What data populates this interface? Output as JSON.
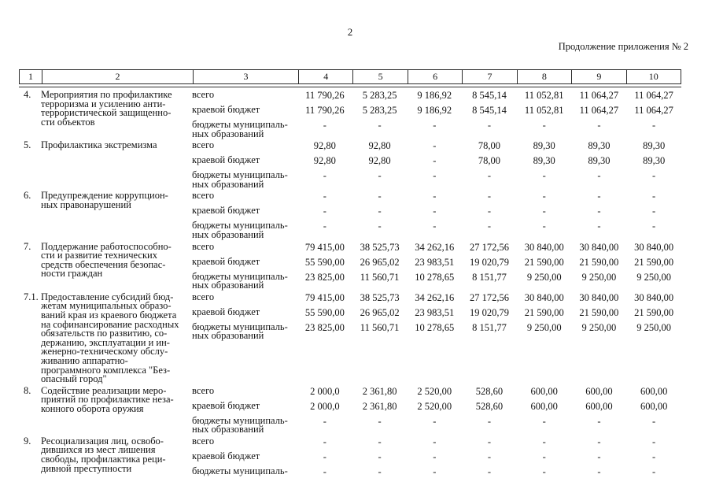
{
  "page": {
    "number": "2",
    "continuation": "Продолжение приложения № 2"
  },
  "table": {
    "header": [
      "1",
      "2",
      "3",
      "4",
      "5",
      "6",
      "7",
      "8",
      "9",
      "10"
    ],
    "rows": [
      {
        "num": "4.",
        "name": "Мероприятия по профилактике\nтерроризма и усилению анти-\nтеррористической защищенно-\nсти объектов",
        "lines": [
          {
            "label": "всего",
            "values": [
              "11 790,26",
              "5 283,25",
              "9 186,92",
              "8 545,14",
              "11 052,81",
              "11 064,27",
              "11 064,27"
            ]
          },
          {
            "label": "краевой бюджет",
            "values": [
              "11 790,26",
              "5 283,25",
              "9 186,92",
              "8 545,14",
              "11 052,81",
              "11 064,27",
              "11 064,27"
            ]
          },
          {
            "label": "бюджеты муниципаль-\nных образований",
            "values": [
              "-",
              "-",
              "-",
              "-",
              "-",
              "-",
              "-"
            ]
          }
        ]
      },
      {
        "num": "5.",
        "name": "Профилактика экстремизма",
        "lines": [
          {
            "label": "всего",
            "values": [
              "92,80",
              "92,80",
              "-",
              "78,00",
              "89,30",
              "89,30",
              "89,30"
            ]
          },
          {
            "label": "краевой бюджет",
            "values": [
              "92,80",
              "92,80",
              "-",
              "78,00",
              "89,30",
              "89,30",
              "89,30"
            ]
          },
          {
            "label": "бюджеты муниципаль-\nных образований",
            "values": [
              "-",
              "-",
              "-",
              "-",
              "-",
              "-",
              "-"
            ]
          }
        ]
      },
      {
        "num": "6.",
        "name": "Предупреждение коррупцион-\nных правонарушений",
        "lines": [
          {
            "label": "всего",
            "values": [
              "-",
              "-",
              "-",
              "-",
              "-",
              "-",
              "-"
            ]
          },
          {
            "label": "краевой бюджет",
            "values": [
              "-",
              "-",
              "-",
              "-",
              "-",
              "-",
              "-"
            ]
          },
          {
            "label": "бюджеты муниципаль-\nных образований",
            "values": [
              "-",
              "-",
              "-",
              "-",
              "-",
              "-",
              "-"
            ]
          }
        ]
      },
      {
        "num": "7.",
        "name": "Поддержание работоспособно-\nсти и развитие технических\nсредств обеспечения безопас-\nности граждан",
        "lines": [
          {
            "label": "всего",
            "values": [
              "79 415,00",
              "38 525,73",
              "34 262,16",
              "27 172,56",
              "30 840,00",
              "30 840,00",
              "30 840,00"
            ]
          },
          {
            "label": "краевой бюджет",
            "values": [
              "55 590,00",
              "26 965,02",
              "23 983,51",
              "19 020,79",
              "21 590,00",
              "21 590,00",
              "21 590,00"
            ]
          },
          {
            "label": "бюджеты муниципаль-\nных образований",
            "values": [
              "23 825,00",
              "11 560,71",
              "10 278,65",
              "8 151,77",
              "9 250,00",
              "9 250,00",
              "9 250,00"
            ]
          }
        ]
      },
      {
        "num": "7.1.",
        "name": "Предоставление субсидий бюд-\nжетам муниципальных образо-\nваний края из краевого бюджета\nна софинансирование расходных\nобязательств по развитию, со-\nдержанию, эксплуатации и ин-\nженерно-техническому обслу-\nживанию аппаратно-\nпрограммного комплекса \"Без-\nопасный город\"",
        "lines": [
          {
            "label": "всего",
            "values": [
              "79 415,00",
              "38 525,73",
              "34 262,16",
              "27 172,56",
              "30 840,00",
              "30 840,00",
              "30 840,00"
            ]
          },
          {
            "label": "краевой бюджет",
            "values": [
              "55 590,00",
              "26 965,02",
              "23 983,51",
              "19 020,79",
              "21 590,00",
              "21 590,00",
              "21 590,00"
            ]
          },
          {
            "label": "бюджеты муниципаль-\nных образований",
            "values": [
              "23 825,00",
              "11 560,71",
              "10 278,65",
              "8 151,77",
              "9 250,00",
              "9 250,00",
              "9 250,00"
            ]
          }
        ]
      },
      {
        "num": "8.",
        "name": "Содействие реализации меро-\nприятий по профилактике неза-\nконного оборота оружия",
        "lines": [
          {
            "label": "всего",
            "values": [
              "2 000,0",
              "2 361,80",
              "2 520,00",
              "528,60",
              "600,00",
              "600,00",
              "600,00"
            ]
          },
          {
            "label": "краевой бюджет",
            "values": [
              "2 000,0",
              "2 361,80",
              "2 520,00",
              "528,60",
              "600,00",
              "600,00",
              "600,00"
            ]
          },
          {
            "label": "бюджеты муниципаль-\nных образований",
            "values": [
              "-",
              "-",
              "-",
              "-",
              "-",
              "-",
              "-"
            ]
          }
        ]
      },
      {
        "num": "9.",
        "name": "Ресоциализация лиц, освобо-\nдившихся из мест лишения\nсвободы, профилактика реци-\nдивной преступности",
        "lines": [
          {
            "label": "всего",
            "values": [
              "-",
              "-",
              "-",
              "-",
              "-",
              "-",
              "-"
            ]
          },
          {
            "label": "краевой бюджет",
            "values": [
              "-",
              "-",
              "-",
              "-",
              "-",
              "-",
              "-"
            ]
          },
          {
            "label": "бюджеты муниципаль-",
            "values": [
              "-",
              "-",
              "-",
              "-",
              "-",
              "-",
              "-"
            ]
          }
        ]
      }
    ]
  }
}
